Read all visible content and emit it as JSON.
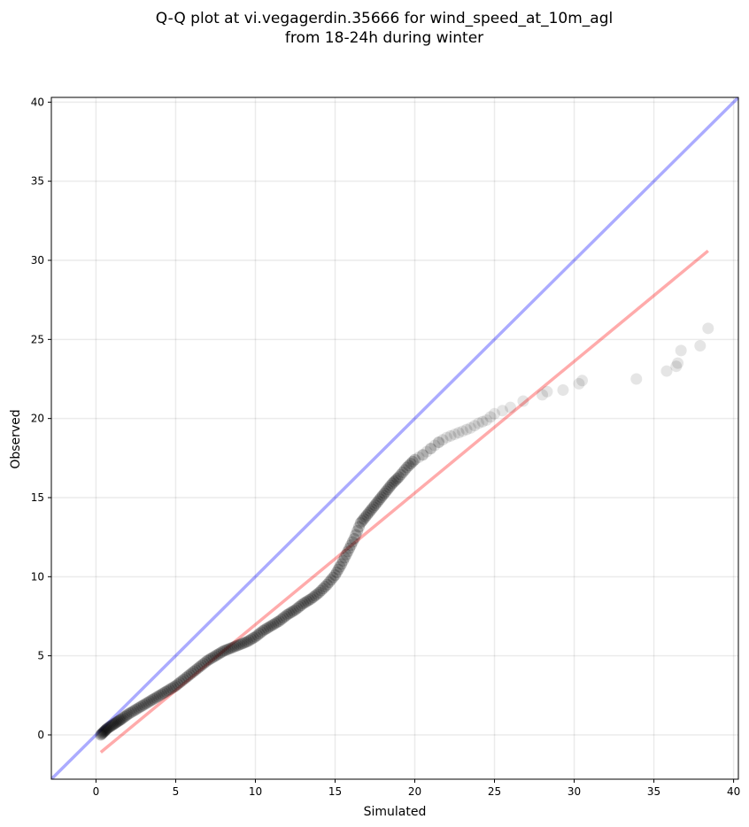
{
  "chart_data": {
    "type": "scatter",
    "title_lines": [
      "Q-Q plot at vi.vegagerdin.35666 for wind_speed_at_10m_agl",
      "from 18-24h during winter"
    ],
    "xlabel": "Simulated",
    "ylabel": "Observed",
    "xlim": [
      -2.8,
      40.3
    ],
    "ylim": [
      -2.8,
      40.3
    ],
    "xticks": [
      0,
      5,
      10,
      15,
      20,
      25,
      30,
      35,
      40
    ],
    "yticks": [
      0,
      5,
      10,
      15,
      20,
      25,
      30,
      35,
      40
    ],
    "grid": true,
    "series": [
      {
        "kind": "points",
        "color": "#000000",
        "points": [
          [
            0.3,
            0.0
          ],
          [
            0.5,
            0.2
          ],
          [
            0.7,
            0.4
          ],
          [
            1.0,
            0.6
          ],
          [
            1.3,
            0.8
          ],
          [
            1.6,
            1.0
          ],
          [
            2.0,
            1.3
          ],
          [
            2.5,
            1.6
          ],
          [
            3.0,
            1.9
          ],
          [
            3.5,
            2.2
          ],
          [
            4.0,
            2.5
          ],
          [
            4.5,
            2.8
          ],
          [
            5.0,
            3.1
          ],
          [
            5.5,
            3.5
          ],
          [
            6.0,
            3.9
          ],
          [
            6.5,
            4.3
          ],
          [
            7.0,
            4.7
          ],
          [
            7.5,
            5.0
          ],
          [
            8.0,
            5.3
          ],
          [
            8.5,
            5.5
          ],
          [
            9.0,
            5.7
          ],
          [
            9.5,
            5.9
          ],
          [
            10.0,
            6.2
          ],
          [
            10.5,
            6.6
          ],
          [
            11.0,
            6.9
          ],
          [
            11.5,
            7.2
          ],
          [
            12.0,
            7.6
          ],
          [
            12.5,
            7.9
          ],
          [
            13.0,
            8.3
          ],
          [
            13.5,
            8.6
          ],
          [
            14.0,
            9.0
          ],
          [
            14.5,
            9.5
          ],
          [
            15.0,
            10.1
          ],
          [
            15.4,
            10.8
          ],
          [
            15.8,
            11.6
          ],
          [
            16.2,
            12.4
          ],
          [
            16.6,
            13.4
          ],
          [
            17.0,
            13.9
          ],
          [
            17.4,
            14.4
          ],
          [
            17.8,
            14.9
          ],
          [
            18.2,
            15.4
          ],
          [
            18.6,
            15.9
          ],
          [
            19.0,
            16.3
          ],
          [
            19.5,
            16.9
          ],
          [
            20.0,
            17.4
          ],
          [
            20.5,
            17.7
          ],
          [
            21.0,
            18.1
          ],
          [
            21.5,
            18.5
          ],
          [
            22.0,
            18.8
          ],
          [
            22.5,
            19.0
          ],
          [
            23.0,
            19.2
          ],
          [
            23.5,
            19.4
          ],
          [
            24.0,
            19.7
          ],
          [
            24.5,
            19.9
          ],
          [
            25.0,
            20.3
          ],
          [
            25.5,
            20.5
          ],
          [
            26.0,
            20.7
          ],
          [
            26.8,
            21.1
          ],
          [
            28.0,
            21.5
          ],
          [
            28.3,
            21.7
          ],
          [
            29.3,
            21.8
          ],
          [
            30.3,
            22.2
          ],
          [
            30.5,
            22.4
          ],
          [
            33.9,
            22.5
          ],
          [
            35.8,
            23.0
          ],
          [
            36.4,
            23.3
          ],
          [
            36.5,
            23.5
          ],
          [
            36.7,
            24.3
          ],
          [
            37.9,
            24.6
          ],
          [
            38.4,
            25.7
          ]
        ]
      },
      {
        "kind": "line",
        "color": "#0000ff",
        "points": [
          [
            -2.8,
            -2.8
          ],
          [
            40.3,
            40.3
          ]
        ]
      },
      {
        "kind": "line",
        "color": "#ff0000",
        "points": [
          [
            0.3,
            -1.1
          ],
          [
            38.4,
            30.6
          ]
        ]
      }
    ]
  }
}
